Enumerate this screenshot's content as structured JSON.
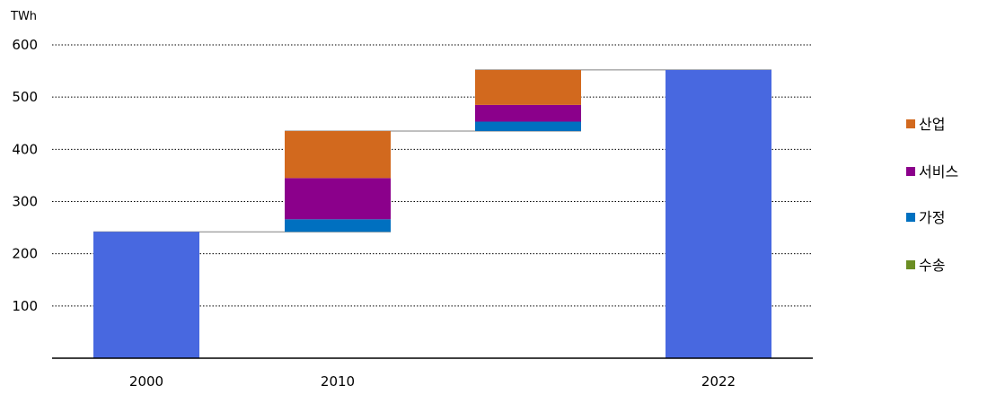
{
  "chart_data": {
    "type": "bar",
    "subtype": "waterfall",
    "unit_label": "TWh",
    "ylim": [
      0,
      600
    ],
    "yticks": [
      100,
      200,
      300,
      400,
      500,
      600
    ],
    "grid": "horizontal-dotted",
    "legend_position": "right",
    "colors": {
      "total": "#4868E0",
      "산업": "#D2691E",
      "서비스": "#8B008B",
      "가정": "#0070C0",
      "수송": "#6B8E23",
      "connector": "#808080"
    },
    "legend": [
      "산업",
      "서비스",
      "가정",
      "수송"
    ],
    "columns": [
      {
        "label": "2000",
        "kind": "total",
        "value": 242
      },
      {
        "label": "2010",
        "kind": "change",
        "base": 242,
        "segments": [
          {
            "name": "수송",
            "value": 0
          },
          {
            "name": "가정",
            "value": 24
          },
          {
            "name": "서비스",
            "value": 79
          },
          {
            "name": "산업",
            "value": 90
          }
        ]
      },
      {
        "label": "",
        "kind": "change",
        "base": 435,
        "segments": [
          {
            "name": "수송",
            "value": 0
          },
          {
            "name": "가정",
            "value": 18
          },
          {
            "name": "서비스",
            "value": 32
          },
          {
            "name": "산업",
            "value": 67
          }
        ]
      },
      {
        "label": "2022",
        "kind": "total",
        "value": 552
      }
    ]
  }
}
